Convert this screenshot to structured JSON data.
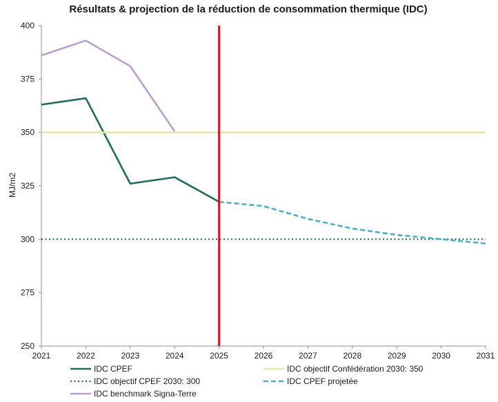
{
  "chart_data": {
    "type": "line",
    "title": "Résultats & projection de la réduction de consommation thermique (IDC)",
    "xlabel": "",
    "ylabel": "MJ/m2",
    "x": [
      2021,
      2022,
      2023,
      2024,
      2025,
      2026,
      2027,
      2028,
      2029,
      2030,
      2031
    ],
    "xlim": [
      2021,
      2031
    ],
    "ylim": [
      250,
      400
    ],
    "yticks": [
      250,
      275,
      300,
      325,
      350,
      375,
      400
    ],
    "grid": false,
    "legend_position": "bottom",
    "marker_year": 2025,
    "marker_color": "#d7191c",
    "series": [
      {
        "name": "IDC CPEF",
        "color": "#1f6b5c",
        "style": "solid",
        "x": [
          2021,
          2022,
          2023,
          2024,
          2025
        ],
        "values": [
          363,
          366,
          326,
          329,
          317.5
        ]
      },
      {
        "name": "IDC objectif Confédération 2030: 350",
        "color": "#e8e4b0",
        "style": "solid",
        "x": [
          2021,
          2031
        ],
        "values": [
          350,
          350
        ]
      },
      {
        "name": "IDC objectif CPEF 2030: 300",
        "color": "#1f6b5c",
        "style": "dotted",
        "x": [
          2021,
          2031
        ],
        "values": [
          300,
          300
        ]
      },
      {
        "name": "IDC CPEF projetée",
        "color": "#4aaec4",
        "style": "dashed",
        "x": [
          2025,
          2026,
          2027,
          2028,
          2029,
          2030,
          2031
        ],
        "values": [
          317.5,
          315.5,
          309.5,
          305,
          302,
          300,
          298
        ]
      },
      {
        "name": "IDC benchmark Signa-Terre",
        "color": "#b79fd0",
        "style": "solid",
        "x": [
          2021,
          2022,
          2023,
          2024
        ],
        "values": [
          386,
          393,
          381,
          350.5
        ]
      }
    ]
  }
}
